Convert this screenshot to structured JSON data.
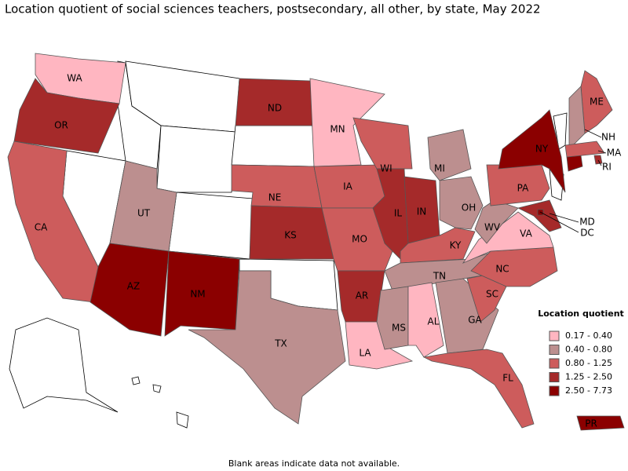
{
  "title": "Location quotient of social sciences teachers, postsecondary, all other, by state, May 2022",
  "legend": {
    "title": "Location quotient",
    "items": [
      {
        "label": "0.17 - 0.40",
        "color": "#ffb6c1"
      },
      {
        "label": "0.40 - 0.80",
        "color": "#bc8f8f"
      },
      {
        "label": "0.80 - 1.25",
        "color": "#cd5c5c"
      },
      {
        "label": "1.25 - 2.50",
        "color": "#a52a2a"
      },
      {
        "label": "2.50 - 7.73",
        "color": "#8b0000"
      }
    ]
  },
  "states": [
    {
      "abbr": "WA",
      "bin": 0
    },
    {
      "abbr": "OR",
      "bin": 3
    },
    {
      "abbr": "CA",
      "bin": 2
    },
    {
      "abbr": "UT",
      "bin": 1
    },
    {
      "abbr": "AZ",
      "bin": 4
    },
    {
      "abbr": "NM",
      "bin": 4
    },
    {
      "abbr": "ND",
      "bin": 3
    },
    {
      "abbr": "NE",
      "bin": 2
    },
    {
      "abbr": "KS",
      "bin": 3
    },
    {
      "abbr": "TX",
      "bin": 1
    },
    {
      "abbr": "MN",
      "bin": 0
    },
    {
      "abbr": "IA",
      "bin": 2
    },
    {
      "abbr": "MO",
      "bin": 2
    },
    {
      "abbr": "AR",
      "bin": 3
    },
    {
      "abbr": "LA",
      "bin": 0
    },
    {
      "abbr": "WI",
      "bin": 2
    },
    {
      "abbr": "IL",
      "bin": 3
    },
    {
      "abbr": "IN",
      "bin": 3
    },
    {
      "abbr": "MI",
      "bin": 1
    },
    {
      "abbr": "OH",
      "bin": 1
    },
    {
      "abbr": "KY",
      "bin": 2
    },
    {
      "abbr": "TN",
      "bin": 1
    },
    {
      "abbr": "MS",
      "bin": 1
    },
    {
      "abbr": "AL",
      "bin": 0
    },
    {
      "abbr": "GA",
      "bin": 1
    },
    {
      "abbr": "FL",
      "bin": 2
    },
    {
      "abbr": "SC",
      "bin": 2
    },
    {
      "abbr": "NC",
      "bin": 2
    },
    {
      "abbr": "VA",
      "bin": 0
    },
    {
      "abbr": "WV",
      "bin": 1
    },
    {
      "abbr": "PA",
      "bin": 2
    },
    {
      "abbr": "NY",
      "bin": 4
    },
    {
      "abbr": "ME",
      "bin": 2
    },
    {
      "abbr": "NH",
      "bin": 1
    },
    {
      "abbr": "MA",
      "bin": 2
    },
    {
      "abbr": "RI",
      "bin": 3
    },
    {
      "abbr": "MD",
      "bin": 3
    },
    {
      "abbr": "DC",
      "bin": 4
    },
    {
      "abbr": "PR",
      "bin": 4
    }
  ],
  "footnote": "Blank areas indicate data not available."
}
